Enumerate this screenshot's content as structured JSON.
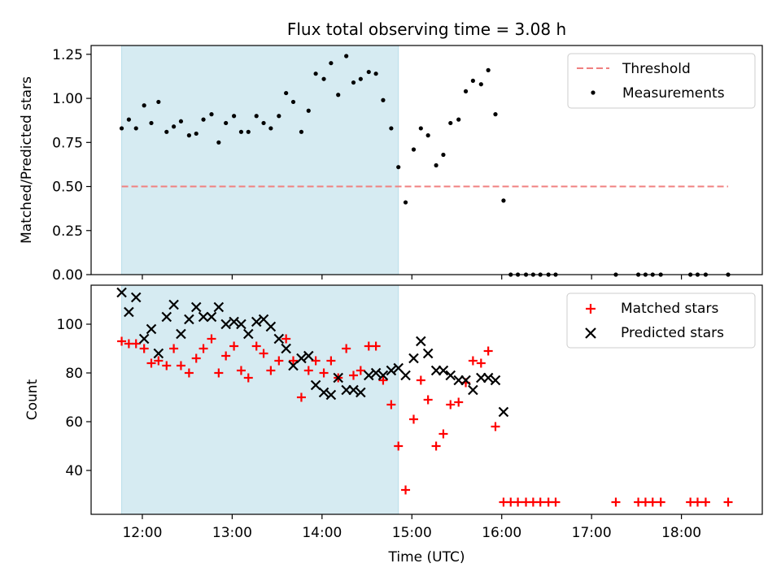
{
  "chart_data": {
    "title": "Flux total observing time = 3.08 h",
    "xlabel": "Time (UTC)",
    "x_ticks": [
      "12:00",
      "13:00",
      "14:00",
      "15:00",
      "16:00",
      "17:00",
      "18:00"
    ],
    "xlim_hours": [
      11.43,
      18.9
    ],
    "shaded_span_hours": [
      11.77,
      14.85
    ],
    "panels": [
      {
        "type": "scatter",
        "ylabel": "Matched/Predicted stars",
        "ylim": [
          0,
          1.3
        ],
        "y_ticks": [
          "0.00",
          "0.25",
          "0.50",
          "0.75",
          "1.00",
          "1.25"
        ],
        "legend_position": "top-right",
        "threshold": {
          "name": "Threshold",
          "value": 0.5,
          "x_range": [
            11.77,
            18.52
          ],
          "color": "#f08080"
        },
        "series": [
          {
            "name": "Measurements",
            "color": "#000000",
            "x": [
              11.77,
              11.85,
              11.93,
              12.02,
              12.1,
              12.18,
              12.27,
              12.35,
              12.43,
              12.52,
              12.6,
              12.68,
              12.77,
              12.85,
              12.93,
              13.02,
              13.1,
              13.18,
              13.27,
              13.35,
              13.43,
              13.52,
              13.6,
              13.68,
              13.77,
              13.85,
              13.93,
              14.02,
              14.1,
              14.18,
              14.27,
              14.35,
              14.43,
              14.52,
              14.6,
              14.68,
              14.77,
              14.85,
              14.93,
              15.02,
              15.1,
              15.18,
              15.27,
              15.35,
              15.43,
              15.52,
              15.6,
              15.68,
              15.77,
              15.85,
              15.93,
              16.02,
              16.1,
              16.18,
              16.27,
              16.35,
              16.43,
              16.52,
              16.6,
              17.27,
              17.52,
              17.6,
              17.68,
              17.77,
              18.1,
              18.18,
              18.27,
              18.52
            ],
            "y": [
              0.83,
              0.88,
              0.83,
              0.96,
              0.86,
              0.98,
              0.81,
              0.84,
              0.87,
              0.79,
              0.8,
              0.88,
              0.91,
              0.75,
              0.86,
              0.9,
              0.81,
              0.81,
              0.9,
              0.86,
              0.83,
              0.9,
              1.03,
              0.98,
              0.81,
              0.93,
              1.14,
              1.11,
              1.2,
              1.02,
              1.24,
              1.09,
              1.11,
              1.15,
              1.14,
              0.99,
              0.83,
              0.61,
              0.41,
              0.71,
              0.83,
              0.79,
              0.62,
              0.68,
              0.86,
              0.88,
              1.04,
              1.1,
              1.08,
              1.16,
              0.91,
              0.42,
              0,
              0,
              0,
              0,
              0,
              0,
              0,
              0,
              0,
              0,
              0,
              0,
              0,
              0,
              0,
              0
            ]
          }
        ]
      },
      {
        "type": "scatter",
        "ylabel": "Count",
        "ylim": [
          22,
          116
        ],
        "y_ticks": [
          "40",
          "60",
          "80",
          "100"
        ],
        "legend_position": "top-right",
        "series": [
          {
            "name": "Matched stars",
            "color": "#ff0000",
            "marker": "plus",
            "x": [
              11.77,
              11.85,
              11.93,
              12.02,
              12.1,
              12.18,
              12.27,
              12.35,
              12.43,
              12.52,
              12.6,
              12.68,
              12.77,
              12.85,
              12.93,
              13.02,
              13.1,
              13.18,
              13.27,
              13.35,
              13.43,
              13.52,
              13.6,
              13.68,
              13.77,
              13.85,
              13.93,
              14.02,
              14.1,
              14.18,
              14.27,
              14.35,
              14.43,
              14.52,
              14.6,
              14.68,
              14.77,
              14.85,
              14.93,
              15.02,
              15.1,
              15.18,
              15.27,
              15.35,
              15.43,
              15.52,
              15.6,
              15.68,
              15.77,
              15.85,
              15.93,
              16.02,
              16.1,
              16.18,
              16.27,
              16.35,
              16.43,
              16.52,
              16.6,
              17.27,
              17.52,
              17.6,
              17.68,
              17.77,
              18.1,
              18.18,
              18.27,
              18.52
            ],
            "y": [
              93,
              92,
              92,
              90,
              84,
              85,
              83,
              90,
              83,
              80,
              86,
              90,
              94,
              80,
              87,
              91,
              81,
              78,
              91,
              88,
              81,
              85,
              94,
              85,
              70,
              81,
              85,
              80,
              85,
              78,
              90,
              79,
              81,
              91,
              91,
              77,
              67,
              50,
              32,
              61,
              77,
              69,
              50,
              55,
              67,
              68,
              76,
              85,
              84,
              89,
              58,
              27,
              27,
              27,
              27,
              27,
              27,
              27,
              27,
              27,
              27,
              27,
              27,
              27,
              27,
              27,
              27,
              27
            ]
          },
          {
            "name": "Predicted stars",
            "color": "#000000",
            "marker": "x",
            "x": [
              11.77,
              11.85,
              11.93,
              12.02,
              12.1,
              12.18,
              12.27,
              12.35,
              12.43,
              12.52,
              12.6,
              12.68,
              12.77,
              12.85,
              12.93,
              13.02,
              13.1,
              13.18,
              13.27,
              13.35,
              13.43,
              13.52,
              13.6,
              13.68,
              13.77,
              13.85,
              13.93,
              14.02,
              14.1,
              14.18,
              14.27,
              14.35,
              14.43,
              14.52,
              14.6,
              14.68,
              14.77,
              14.85,
              14.93,
              15.02,
              15.1,
              15.18,
              15.27,
              15.35,
              15.43,
              15.52,
              15.6,
              15.68,
              15.77,
              15.85,
              15.93,
              16.02
            ],
            "y": [
              113,
              105,
              111,
              94,
              98,
              88,
              103,
              108,
              96,
              102,
              107,
              103,
              103,
              107,
              100,
              101,
              100,
              96,
              101,
              102,
              99,
              94,
              90,
              83,
              86,
              87,
              75,
              72,
              71,
              78,
              73,
              73,
              72,
              79,
              80,
              79,
              81,
              82,
              79,
              86,
              93,
              88,
              81,
              81,
              79,
              77,
              77,
              73,
              78,
              78,
              77,
              64
            ]
          }
        ]
      }
    ]
  }
}
